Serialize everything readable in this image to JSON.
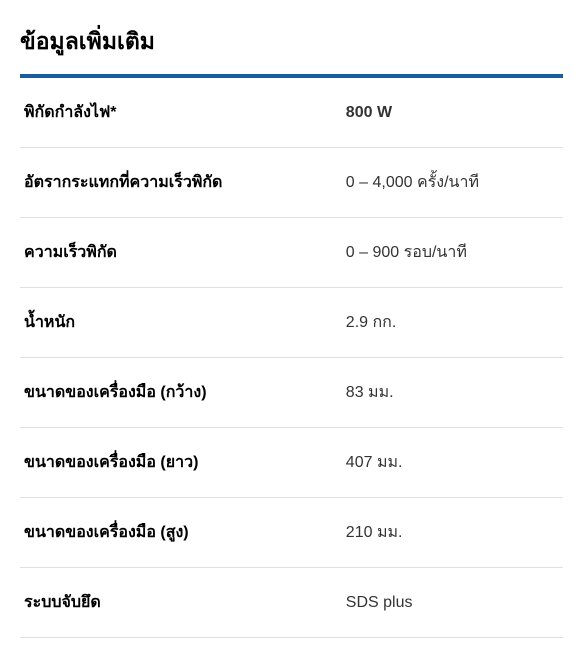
{
  "section": {
    "title": "ข้อมูลเพิ่มเติม",
    "divider_color": "#1a5d9e",
    "title_fontsize": 23,
    "label_fontsize": 16,
    "value_fontsize": 16,
    "border_color": "#e0e0e0",
    "specs": [
      {
        "label": "พิกัดกำลังไฟ*",
        "value": "800 W",
        "value_bold": true
      },
      {
        "label": "อัตรากระแทกที่ความเร็วพิกัด",
        "value": "0 – 4,000 ครั้ง/นาที",
        "value_bold": false
      },
      {
        "label": "ความเร็วพิกัด",
        "value": "0 – 900 รอบ/นาที",
        "value_bold": false
      },
      {
        "label": "น้ำหนัก",
        "value": "2.9 กก.",
        "value_bold": false
      },
      {
        "label": "ขนาดของเครื่องมือ (กว้าง)",
        "value": "83 มม.",
        "value_bold": false
      },
      {
        "label": "ขนาดของเครื่องมือ (ยาว)",
        "value": "407 มม.",
        "value_bold": false
      },
      {
        "label": "ขนาดของเครื่องมือ (สูง)",
        "value": "210 มม.",
        "value_bold": false
      },
      {
        "label": "ระบบจับยึด",
        "value": "SDS plus",
        "value_bold": false
      }
    ]
  }
}
